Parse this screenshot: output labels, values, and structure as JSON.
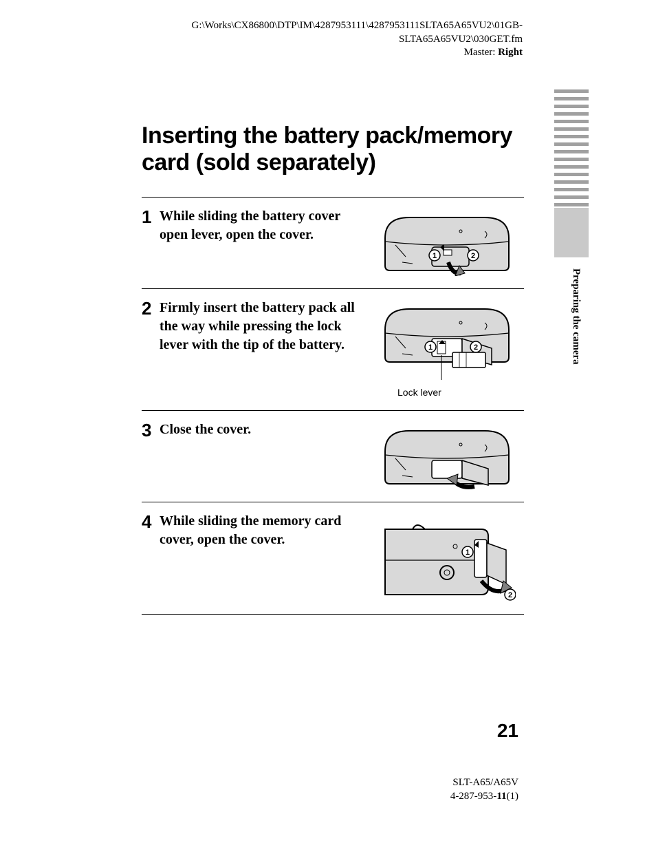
{
  "header": {
    "path_line1": "G:\\Works\\CX86800\\DTP\\IM\\4287953111\\4287953111SLTA65A65VU2\\01GB-",
    "path_line2": "SLTA65A65VU2\\030GET.fm",
    "master_label": "Master: ",
    "master_value": "Right"
  },
  "side": {
    "bar_count": 16,
    "bar_color": "#a0a0a0",
    "block_color": "#c9c9c9",
    "section_label": "Preparing the camera"
  },
  "title": "Inserting the battery pack/memory card (sold separately)",
  "steps": [
    {
      "num": "1",
      "text": "While sliding the battery cover open lever, open the cover.",
      "markers": [
        "1",
        "2"
      ],
      "caption": ""
    },
    {
      "num": "2",
      "text": "Firmly insert the battery pack all the way while pressing the lock lever with the tip of the battery.",
      "markers": [
        "1",
        "2"
      ],
      "caption": "Lock lever"
    },
    {
      "num": "3",
      "text": "Close the cover.",
      "markers": [],
      "caption": ""
    },
    {
      "num": "4",
      "text": "While sliding the memory card cover, open the cover.",
      "markers": [
        "1",
        "2"
      ],
      "caption": ""
    }
  ],
  "page_number": "21",
  "footer": {
    "model": "SLT-A65/A65V",
    "doc_code_prefix": "4-287-953-",
    "doc_code_bold": "11",
    "doc_code_suffix": "(1)"
  },
  "colors": {
    "text": "#000000",
    "camera_fill": "#d9d9d9",
    "camera_stroke": "#000000",
    "marker_fill": "#ffffff",
    "marker_stroke": "#000000",
    "arrow_fill": "#808080"
  }
}
